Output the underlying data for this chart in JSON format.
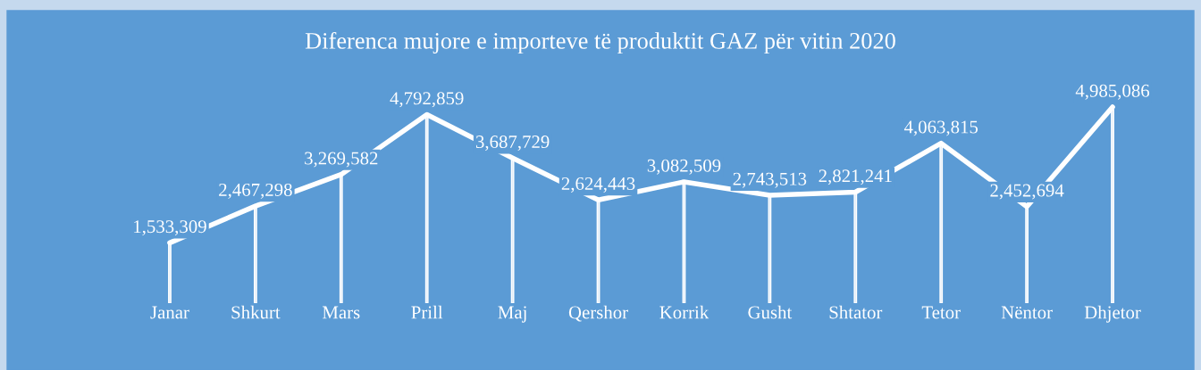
{
  "chart_data": {
    "type": "line",
    "title": "Diferenca mujore e importeve të produktit GAZ për vitin 2020",
    "categories": [
      "Janar",
      "Shkurt",
      "Mars",
      "Prill",
      "Maj",
      "Qershor",
      "Korrik",
      "Gusht",
      "Shtator",
      "Tetor",
      "Nëntor",
      "Dhjetor"
    ],
    "series": [
      {
        "type": "bar",
        "color": "#dce9f6",
        "values": [
          1533309,
          2467298,
          3269582,
          4792859,
          3687729,
          2624443,
          3082509,
          2743513,
          2821241,
          4063815,
          2452694,
          4985086
        ]
      },
      {
        "color": "#ffffff",
        "values": [
          1533309,
          2467298,
          3269582,
          4792859,
          3687729,
          2624443,
          3082509,
          2743513,
          2821241,
          4063815,
          2452694,
          4985086
        ],
        "value_labels": [
          "1,533,309",
          "2,467,298",
          "3,269,582",
          "4,792,859",
          "3,687,729",
          "2,624,443",
          "3,082,509",
          "2,743,513",
          "2,821,241",
          "4,063,815",
          "2,452,694",
          "4,985,086"
        ]
      }
    ],
    "grid": false,
    "legend": false,
    "marker": "none",
    "line_style": "solid"
  }
}
